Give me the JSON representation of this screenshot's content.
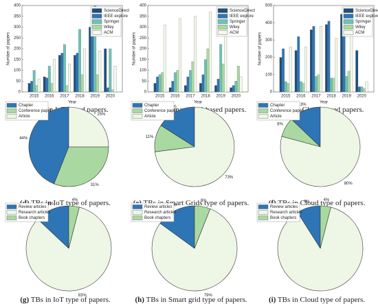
{
  "chart_data": [
    {
      "type": "bar",
      "panel": "(a)",
      "caption": "TBs in IoT-based papers.",
      "xlabel": "Year",
      "ylabel": "Number of papers",
      "categories": [
        "2015",
        "2016",
        "2017",
        "2018",
        "2019",
        "2020"
      ],
      "series": [
        {
          "name": "ScienceDirect",
          "color": "#1f4e79",
          "values": [
            40,
            70,
            170,
            170,
            300,
            200
          ]
        },
        {
          "name": "IEEE explore",
          "color": "#2e75b6",
          "values": [
            50,
            65,
            180,
            180,
            270,
            20
          ]
        },
        {
          "name": "Springer",
          "color": "#6cc3b4",
          "values": [
            100,
            120,
            220,
            290,
            400,
            200
          ]
        },
        {
          "name": "Wiley",
          "color": "#a9d9a0",
          "values": [
            30,
            40,
            30,
            80,
            80,
            10
          ]
        },
        {
          "name": "ACM",
          "color": "#f3f9ec",
          "values": [
            60,
            150,
            130,
            200,
            190,
            120
          ]
        }
      ],
      "ylim": [
        0,
        400
      ],
      "yticks": [
        0,
        50,
        100,
        150,
        200,
        250,
        300,
        350,
        400
      ],
      "legend": "upper right"
    },
    {
      "type": "bar",
      "panel": "(b)",
      "caption": "TBs in Smart Grid-based papers.",
      "xlabel": "Year",
      "ylabel": "Number of papers",
      "categories": [
        "2015",
        "2016",
        "2017",
        "2018",
        "2019",
        "2020"
      ],
      "series": [
        {
          "name": "ScienceDirect",
          "color": "#1f4e79",
          "values": [
            40,
            20,
            30,
            40,
            30,
            20
          ]
        },
        {
          "name": "IEEE explore",
          "color": "#2e75b6",
          "values": [
            70,
            50,
            70,
            80,
            60,
            30
          ]
        },
        {
          "name": "Springer",
          "color": "#6cc3b4",
          "values": [
            80,
            90,
            100,
            150,
            220,
            50
          ]
        },
        {
          "name": "Wiley",
          "color": "#a9d9a0",
          "values": [
            90,
            100,
            140,
            200,
            130,
            120
          ]
        },
        {
          "name": "ACM",
          "color": "#f3f9ec",
          "values": [
            310,
            340,
            350,
            370,
            400,
            70
          ]
        }
      ],
      "ylim": [
        0,
        400
      ],
      "yticks": [
        0,
        50,
        100,
        150,
        200,
        250,
        300,
        350,
        400
      ],
      "legend": "upper right"
    },
    {
      "type": "bar",
      "panel": "(c)",
      "caption": "TBs in Cloud-based papers.",
      "xlabel": "Year",
      "ylabel": "Number of papers",
      "categories": [
        "2015",
        "2016",
        "2017",
        "2018",
        "2019",
        "2020"
      ],
      "series": [
        {
          "name": "ScienceDirect",
          "color": "#1f4e79",
          "values": [
            200,
            240,
            360,
            390,
            450,
            240
          ]
        },
        {
          "name": "IEEE explore",
          "color": "#2e75b6",
          "values": [
            250,
            320,
            380,
            410,
            410,
            30
          ]
        },
        {
          "name": "Springer",
          "color": "#6cc3b4",
          "values": [
            60,
            60,
            90,
            80,
            90,
            30
          ]
        },
        {
          "name": "Wiley",
          "color": "#a9d9a0",
          "values": [
            50,
            50,
            100,
            80,
            120,
            20
          ]
        },
        {
          "name": "ACM",
          "color": "#f3f9ec",
          "values": [
            260,
            260,
            380,
            310,
            380,
            60
          ]
        }
      ],
      "ylim": [
        0,
        500
      ],
      "yticks": [
        0,
        100,
        200,
        300,
        400,
        500
      ],
      "legend": "upper right"
    },
    {
      "type": "pie",
      "panel": "(d)",
      "caption": "TBs in IoT type of papers.",
      "categories": [
        "Chapter",
        "Conference paper",
        "Article"
      ],
      "values": [
        44,
        31,
        25
      ],
      "value_labels": [
        "44%",
        "31%",
        "25%"
      ],
      "colors": [
        "#2e75b6",
        "#a9d9a0",
        "#eef7e6"
      ],
      "legend": "upper left"
    },
    {
      "type": "pie",
      "panel": "(e)",
      "caption": "TBs in Smart Grids type of papers.",
      "categories": [
        "Chapter",
        "Conference paper",
        "Article"
      ],
      "values": [
        16,
        11,
        73
      ],
      "value_labels": [
        "16%",
        "11%",
        "73%"
      ],
      "colors": [
        "#2e75b6",
        "#a9d9a0",
        "#eef7e6"
      ],
      "legend": "upper left"
    },
    {
      "type": "pie",
      "panel": "(f)",
      "caption": "TBs in Cloud type of papers.",
      "categories": [
        "Chapter",
        "Conference paper",
        "Article"
      ],
      "values": [
        13,
        8,
        80
      ],
      "value_labels": [
        "13%",
        "8%",
        "80%"
      ],
      "colors": [
        "#2e75b6",
        "#a9d9a0",
        "#eef7e6"
      ],
      "legend": "upper left"
    },
    {
      "type": "pie",
      "panel": "(g)",
      "caption": "TBs in IoT type of papers.",
      "categories": [
        "Review articles",
        "Research articles",
        "Book chapters"
      ],
      "values": [
        13,
        83,
        4
      ],
      "value_labels": [
        "13%",
        "83%",
        "4%"
      ],
      "colors": [
        "#2e75b6",
        "#eef7e6",
        "#a9d9a0"
      ],
      "legend": "upper left"
    },
    {
      "type": "pie",
      "panel": "(h)",
      "caption": "TBs in Smart grid type of papers.",
      "categories": [
        "Review articles",
        "Research articles",
        "Book chapters"
      ],
      "values": [
        15,
        79,
        6
      ],
      "value_labels": [
        "15%",
        "79%",
        "6%"
      ],
      "colors": [
        "#2e75b6",
        "#eef7e6",
        "#a9d9a0"
      ],
      "legend": "upper left"
    },
    {
      "type": "pie",
      "panel": "(i)",
      "caption": "TBs in Cloud type of papers.",
      "categories": [
        "Review articles",
        "Research articles",
        "Book chapters"
      ],
      "values": [
        9,
        87,
        4
      ],
      "value_labels": [
        "9%",
        null,
        "4%"
      ],
      "colors": [
        "#2e75b6",
        "#eef7e6",
        "#a9d9a0"
      ],
      "legend": "upper left"
    }
  ]
}
